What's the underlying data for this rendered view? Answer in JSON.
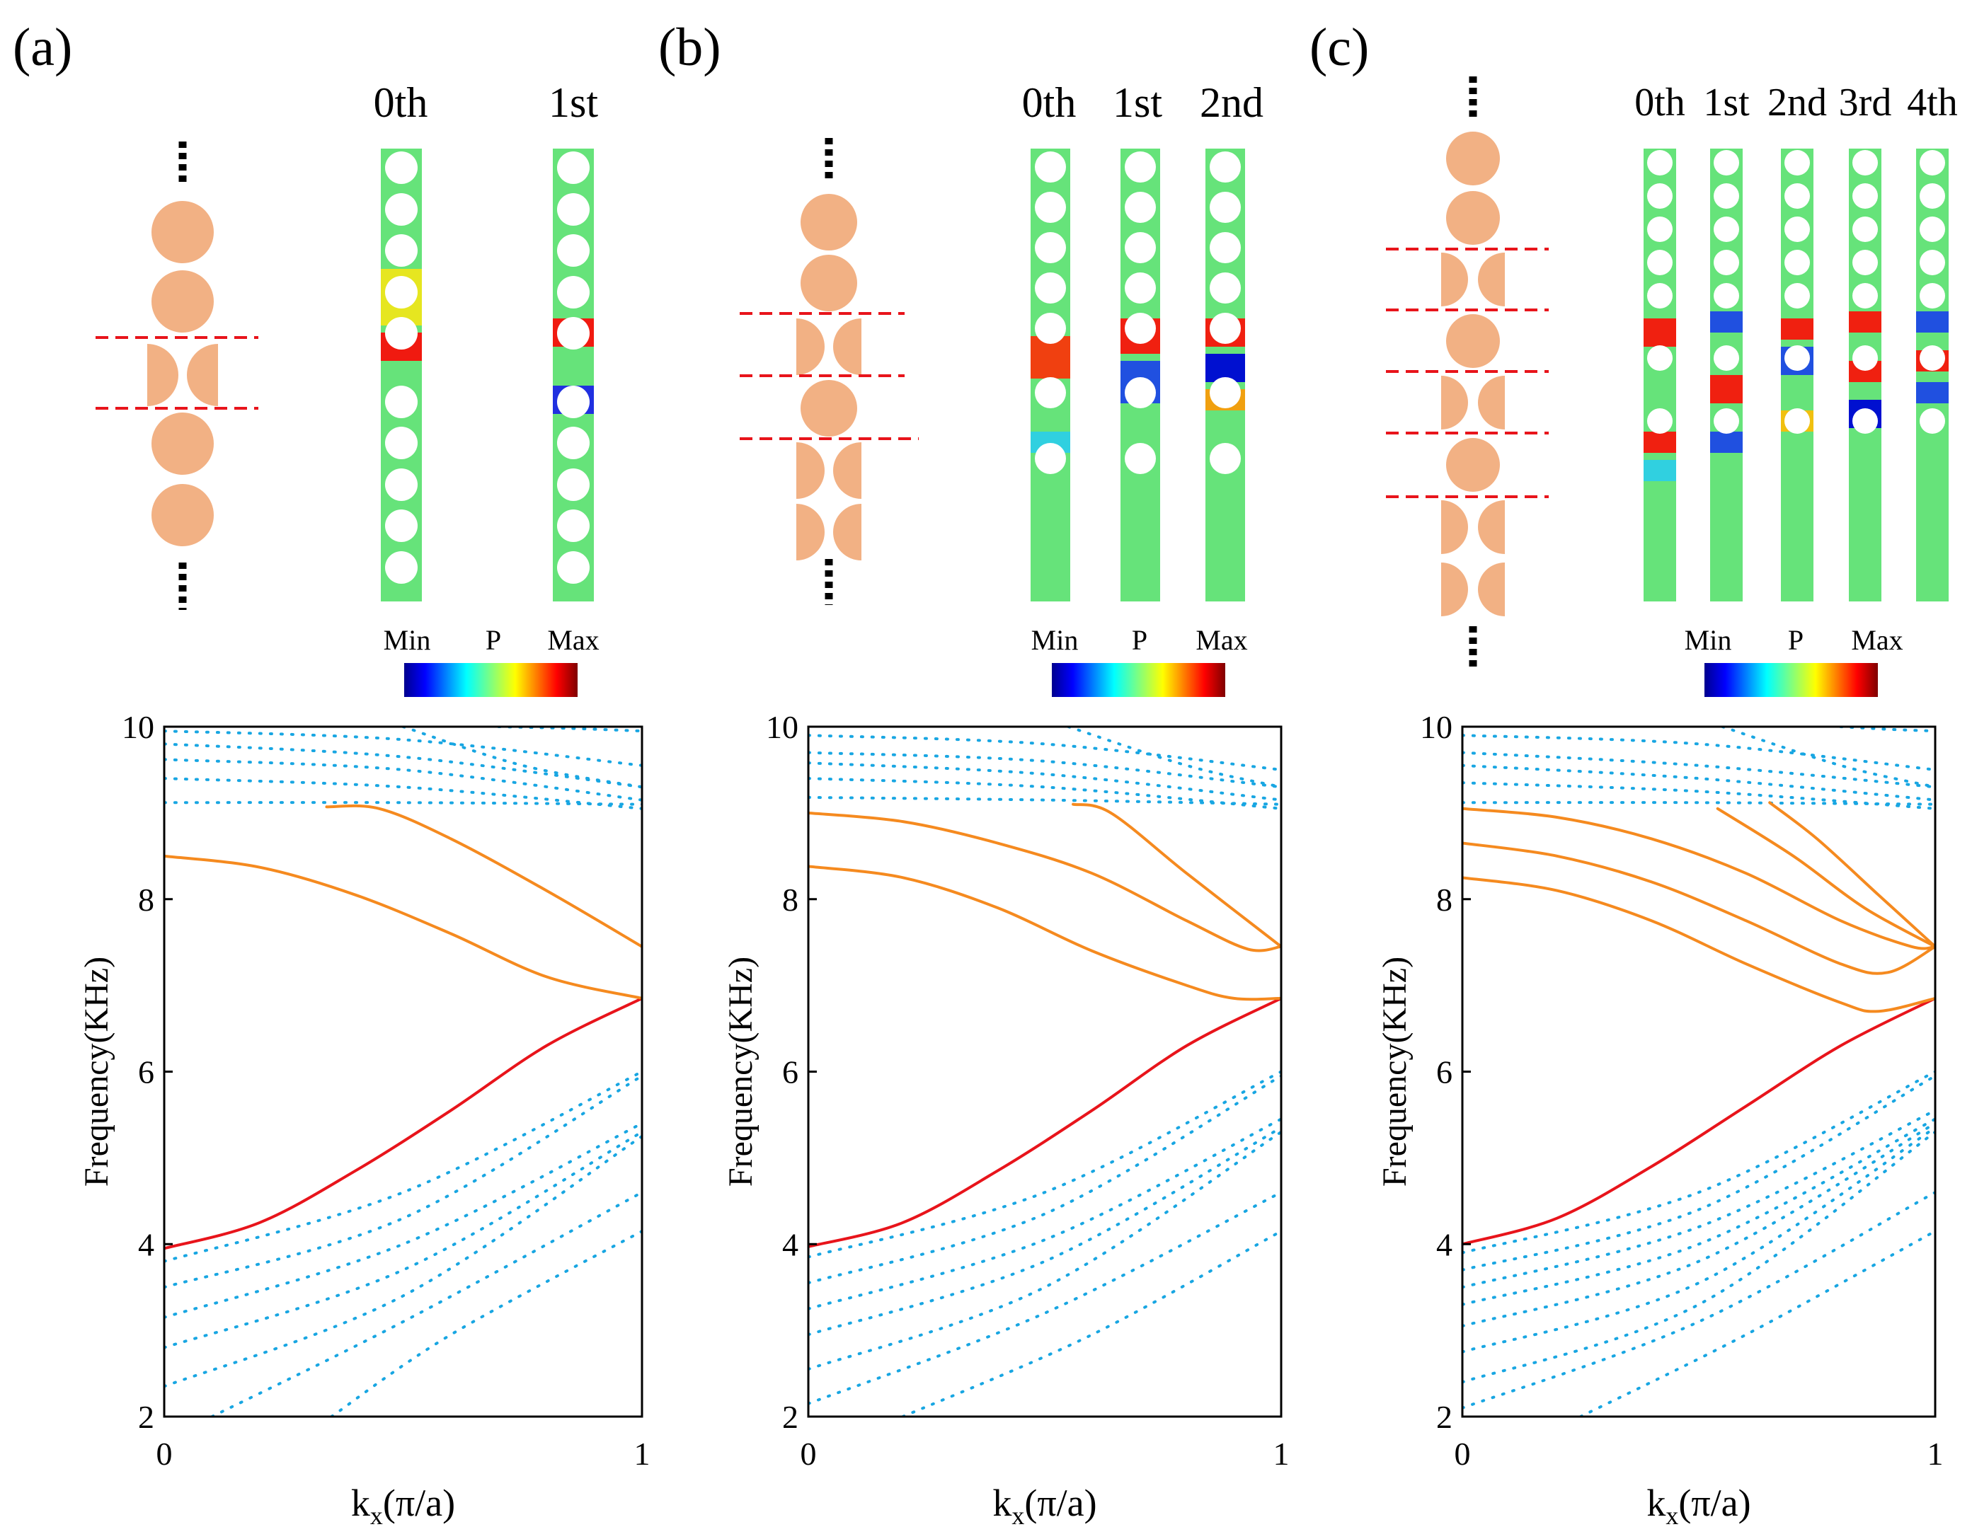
{
  "colors": {
    "cylinder": "#F2B184",
    "cut_line": "#E8141B",
    "bulk_band": "#18A6E2",
    "edge_band_orange": "#F58A1F",
    "edge_band_red": "#E8141B",
    "axis": "#000000"
  },
  "colorbar": {
    "min_label": "Min",
    "var_label": "P",
    "max_label": "Max"
  },
  "panels": [
    {
      "label": "(a)",
      "mode_labels": [
        "0th",
        "1st"
      ]
    },
    {
      "label": "(b)",
      "mode_labels": [
        "0th",
        "1st",
        "2nd"
      ]
    },
    {
      "label": "(c)",
      "mode_labels": [
        "0th",
        "1st",
        "2nd",
        "3rd",
        "4th"
      ]
    }
  ],
  "chart_data": [
    {
      "type": "line",
      "title": "(a)",
      "xlabel": "k",
      "xlabel_sub": "x",
      "xlabel_unit": "(π/a)",
      "ylabel": "Frequency(KHz)",
      "xlim": [
        0,
        1
      ],
      "ylim": [
        2,
        10
      ],
      "xticks": [
        "0",
        "1"
      ],
      "yticks": [
        "2",
        "4",
        "6",
        "8",
        "10"
      ],
      "series": [
        {
          "name": "edge-red",
          "style": "red",
          "x": [
            0,
            0.2,
            0.4,
            0.6,
            0.8,
            1.0
          ],
          "values": [
            3.95,
            4.25,
            4.85,
            5.55,
            6.3,
            6.85
          ]
        },
        {
          "name": "edge-orange-1",
          "style": "orange",
          "x": [
            0,
            0.2,
            0.4,
            0.6,
            0.8,
            1.0
          ],
          "values": [
            8.5,
            8.37,
            8.05,
            7.6,
            7.1,
            6.85
          ]
        },
        {
          "name": "edge-orange-2",
          "style": "orange",
          "x": [
            0.34,
            0.45,
            0.6,
            0.8,
            1.0
          ],
          "values": [
            9.07,
            9.05,
            8.7,
            8.1,
            7.45
          ]
        },
        {
          "name": "bulk-low-1",
          "style": "bulk",
          "x": [
            0,
            0.5,
            1.0
          ],
          "values": [
            3.8,
            4.6,
            6.0
          ]
        },
        {
          "name": "bulk-low-2",
          "style": "bulk",
          "x": [
            0,
            0.5,
            1.0
          ],
          "values": [
            3.5,
            4.3,
            5.95
          ]
        },
        {
          "name": "bulk-low-3",
          "style": "bulk",
          "x": [
            0,
            0.5,
            1.0
          ],
          "values": [
            3.15,
            4.0,
            5.4
          ]
        },
        {
          "name": "bulk-low-4",
          "style": "bulk",
          "x": [
            0,
            0.5,
            1.0
          ],
          "values": [
            2.8,
            3.7,
            5.3
          ]
        },
        {
          "name": "bulk-low-5",
          "style": "bulk",
          "x": [
            0,
            0.5,
            1.0
          ],
          "values": [
            2.35,
            3.4,
            5.25
          ]
        },
        {
          "name": "bulk-low-6",
          "style": "bulk",
          "x": [
            0.1,
            0.5,
            1.0
          ],
          "values": [
            2.0,
            3.1,
            4.6
          ]
        },
        {
          "name": "bulk-low-7",
          "style": "bulk",
          "x": [
            0.35,
            0.6,
            1.0
          ],
          "values": [
            2.0,
            2.95,
            4.15
          ]
        },
        {
          "name": "bulk-high-1",
          "style": "bulk",
          "x": [
            0,
            0.5,
            1.0
          ],
          "values": [
            9.12,
            9.12,
            9.1
          ]
        },
        {
          "name": "bulk-high-2",
          "style": "bulk",
          "x": [
            0,
            0.5,
            1.0
          ],
          "values": [
            9.4,
            9.3,
            9.05
          ]
        },
        {
          "name": "bulk-high-3",
          "style": "bulk",
          "x": [
            0,
            0.5,
            1.0
          ],
          "values": [
            9.62,
            9.5,
            9.15
          ]
        },
        {
          "name": "bulk-high-4",
          "style": "bulk",
          "x": [
            0,
            0.5,
            1.0
          ],
          "values": [
            9.8,
            9.65,
            9.3
          ]
        },
        {
          "name": "bulk-high-5",
          "style": "bulk",
          "x": [
            0,
            0.5,
            1.0
          ],
          "values": [
            9.95,
            9.85,
            9.55
          ]
        },
        {
          "name": "bulk-high-6",
          "style": "bulk",
          "x": [
            0.5,
            0.75,
            1.0
          ],
          "values": [
            10.0,
            9.55,
            9.3
          ]
        },
        {
          "name": "bulk-high-7",
          "style": "bulk",
          "x": [
            0.7,
            0.85,
            1.0
          ],
          "values": [
            10.0,
            9.98,
            9.95
          ]
        }
      ]
    },
    {
      "type": "line",
      "title": "(b)",
      "xlabel": "k",
      "xlabel_sub": "x",
      "xlabel_unit": "(π/a)",
      "ylabel": "Frequency(KHz)",
      "xlim": [
        0,
        1
      ],
      "ylim": [
        2,
        10
      ],
      "xticks": [
        "0",
        "1"
      ],
      "yticks": [
        "2",
        "4",
        "6",
        "8",
        "10"
      ],
      "series": [
        {
          "name": "edge-red",
          "style": "red",
          "x": [
            0,
            0.2,
            0.4,
            0.6,
            0.8,
            1.0
          ],
          "values": [
            3.97,
            4.25,
            4.85,
            5.55,
            6.3,
            6.85
          ]
        },
        {
          "name": "edge-orange-1",
          "style": "orange",
          "x": [
            0,
            0.2,
            0.4,
            0.6,
            0.8,
            0.9,
            1.0
          ],
          "values": [
            8.38,
            8.25,
            7.9,
            7.4,
            7.0,
            6.85,
            6.85
          ]
        },
        {
          "name": "edge-orange-2",
          "style": "orange",
          "x": [
            0,
            0.2,
            0.4,
            0.6,
            0.8,
            0.93,
            1.0
          ],
          "values": [
            9.0,
            8.9,
            8.65,
            8.3,
            7.75,
            7.42,
            7.45
          ]
        },
        {
          "name": "edge-orange-3",
          "style": "orange",
          "x": [
            0.56,
            0.64,
            0.8,
            1.0
          ],
          "values": [
            9.1,
            9.0,
            8.3,
            7.45
          ]
        },
        {
          "name": "bulk-low-1",
          "style": "bulk",
          "x": [
            0,
            0.5,
            1.0
          ],
          "values": [
            3.85,
            4.6,
            6.0
          ]
        },
        {
          "name": "bulk-low-2",
          "style": "bulk",
          "x": [
            0,
            0.5,
            1.0
          ],
          "values": [
            3.55,
            4.35,
            5.95
          ]
        },
        {
          "name": "bulk-low-3",
          "style": "bulk",
          "x": [
            0,
            0.5,
            1.0
          ],
          "values": [
            3.25,
            4.05,
            5.45
          ]
        },
        {
          "name": "bulk-low-4",
          "style": "bulk",
          "x": [
            0,
            0.5,
            1.0
          ],
          "values": [
            2.95,
            3.8,
            5.35
          ]
        },
        {
          "name": "bulk-low-5",
          "style": "bulk",
          "x": [
            0,
            0.5,
            1.0
          ],
          "values": [
            2.55,
            3.5,
            5.3
          ]
        },
        {
          "name": "bulk-low-6",
          "style": "bulk",
          "x": [
            0,
            0.5,
            1.0
          ],
          "values": [
            2.15,
            3.2,
            4.6
          ]
        },
        {
          "name": "bulk-low-7",
          "style": "bulk",
          "x": [
            0.2,
            0.6,
            1.0
          ],
          "values": [
            2.0,
            2.95,
            4.15
          ]
        },
        {
          "name": "bulk-high-1",
          "style": "bulk",
          "x": [
            0,
            0.5,
            1.0
          ],
          "values": [
            9.18,
            9.15,
            9.1
          ]
        },
        {
          "name": "bulk-high-2",
          "style": "bulk",
          "x": [
            0,
            0.5,
            1.0
          ],
          "values": [
            9.4,
            9.3,
            9.05
          ]
        },
        {
          "name": "bulk-high-3",
          "style": "bulk",
          "x": [
            0,
            0.5,
            1.0
          ],
          "values": [
            9.58,
            9.45,
            9.15
          ]
        },
        {
          "name": "bulk-high-4",
          "style": "bulk",
          "x": [
            0,
            0.5,
            1.0
          ],
          "values": [
            9.7,
            9.6,
            9.3
          ]
        },
        {
          "name": "bulk-high-5",
          "style": "bulk",
          "x": [
            0,
            0.5,
            1.0
          ],
          "values": [
            9.9,
            9.8,
            9.5
          ]
        },
        {
          "name": "bulk-high-6",
          "style": "bulk",
          "x": [
            0.55,
            0.8,
            1.0
          ],
          "values": [
            10.0,
            9.55,
            9.3
          ]
        }
      ]
    },
    {
      "type": "line",
      "title": "(c)",
      "xlabel": "k",
      "xlabel_sub": "x",
      "xlabel_unit": "(π/a)",
      "ylabel": "Frequency(KHz)",
      "xlim": [
        0,
        1
      ],
      "ylim": [
        2,
        10
      ],
      "xticks": [
        "0",
        "1"
      ],
      "yticks": [
        "2",
        "4",
        "6",
        "8",
        "10"
      ],
      "series": [
        {
          "name": "edge-red",
          "style": "red",
          "x": [
            0,
            0.2,
            0.4,
            0.6,
            0.8,
            1.0
          ],
          "values": [
            4.0,
            4.3,
            4.9,
            5.6,
            6.3,
            6.85
          ]
        },
        {
          "name": "edge-orange-1",
          "style": "orange",
          "x": [
            0,
            0.2,
            0.4,
            0.6,
            0.8,
            0.88,
            1.0
          ],
          "values": [
            8.25,
            8.1,
            7.75,
            7.25,
            6.8,
            6.7,
            6.85
          ]
        },
        {
          "name": "edge-orange-2",
          "style": "orange",
          "x": [
            0,
            0.2,
            0.4,
            0.6,
            0.8,
            0.9,
            1.0
          ],
          "values": [
            8.65,
            8.5,
            8.2,
            7.75,
            7.25,
            7.15,
            7.45
          ]
        },
        {
          "name": "edge-orange-3",
          "style": "orange",
          "x": [
            0,
            0.2,
            0.4,
            0.6,
            0.8,
            0.95,
            1.0
          ],
          "values": [
            9.05,
            8.95,
            8.7,
            8.3,
            7.75,
            7.45,
            7.45
          ]
        },
        {
          "name": "edge-orange-4",
          "style": "orange",
          "x": [
            0.54,
            0.7,
            0.85,
            1.0
          ],
          "values": [
            9.05,
            8.5,
            7.9,
            7.45
          ]
        },
        {
          "name": "edge-orange-5",
          "style": "orange",
          "x": [
            0.65,
            0.75,
            0.88,
            1.0
          ],
          "values": [
            9.12,
            8.7,
            8.05,
            7.45
          ]
        },
        {
          "name": "bulk-low-1",
          "style": "bulk",
          "x": [
            0,
            0.5,
            1.0
          ],
          "values": [
            3.9,
            4.6,
            6.0
          ]
        },
        {
          "name": "bulk-low-2",
          "style": "bulk",
          "x": [
            0,
            0.5,
            1.0
          ],
          "values": [
            3.7,
            4.4,
            5.95
          ]
        },
        {
          "name": "bulk-low-3",
          "style": "bulk",
          "x": [
            0,
            0.5,
            1.0
          ],
          "values": [
            3.5,
            4.2,
            5.55
          ]
        },
        {
          "name": "bulk-low-4",
          "style": "bulk",
          "x": [
            0,
            0.5,
            1.0
          ],
          "values": [
            3.3,
            4.0,
            5.45
          ]
        },
        {
          "name": "bulk-low-5",
          "style": "bulk",
          "x": [
            0,
            0.5,
            1.0
          ],
          "values": [
            3.05,
            3.8,
            5.4
          ]
        },
        {
          "name": "bulk-low-6",
          "style": "bulk",
          "x": [
            0,
            0.5,
            1.0
          ],
          "values": [
            2.75,
            3.55,
            5.35
          ]
        },
        {
          "name": "bulk-low-7",
          "style": "bulk",
          "x": [
            0,
            0.5,
            1.0
          ],
          "values": [
            2.4,
            3.3,
            5.3
          ]
        },
        {
          "name": "bulk-low-8",
          "style": "bulk",
          "x": [
            0,
            0.5,
            1.0
          ],
          "values": [
            2.1,
            3.1,
            4.6
          ]
        },
        {
          "name": "bulk-low-9",
          "style": "bulk",
          "x": [
            0.25,
            0.6,
            1.0
          ],
          "values": [
            2.0,
            2.95,
            4.15
          ]
        },
        {
          "name": "bulk-high-1",
          "style": "bulk",
          "x": [
            0,
            0.5,
            1.0
          ],
          "values": [
            9.12,
            9.12,
            9.1
          ]
        },
        {
          "name": "bulk-high-2",
          "style": "bulk",
          "x": [
            0,
            0.5,
            1.0
          ],
          "values": [
            9.35,
            9.25,
            9.05
          ]
        },
        {
          "name": "bulk-high-3",
          "style": "bulk",
          "x": [
            0,
            0.5,
            1.0
          ],
          "values": [
            9.55,
            9.4,
            9.15
          ]
        },
        {
          "name": "bulk-high-4",
          "style": "bulk",
          "x": [
            0,
            0.5,
            1.0
          ],
          "values": [
            9.7,
            9.55,
            9.3
          ]
        },
        {
          "name": "bulk-high-5",
          "style": "bulk",
          "x": [
            0,
            0.5,
            1.0
          ],
          "values": [
            9.9,
            9.8,
            9.5
          ]
        },
        {
          "name": "bulk-high-6",
          "style": "bulk",
          "x": [
            0.55,
            0.8,
            1.0
          ],
          "values": [
            10.0,
            9.55,
            9.3
          ]
        },
        {
          "name": "bulk-high-7",
          "style": "bulk",
          "x": [
            0.8,
            0.9,
            1.0
          ],
          "values": [
            10.0,
            9.97,
            9.95
          ]
        }
      ]
    }
  ]
}
